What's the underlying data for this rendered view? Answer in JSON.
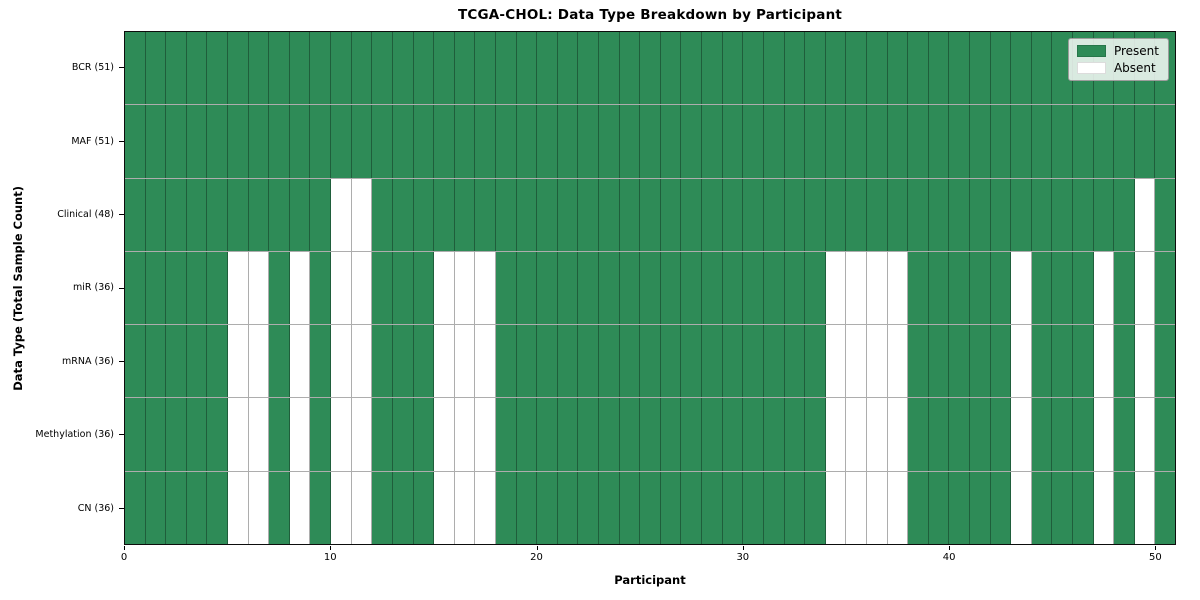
{
  "chart_data": {
    "type": "heatmap",
    "title": "TCGA-CHOL: Data Type Breakdown by Participant",
    "xlabel": "Participant",
    "ylabel": "Data Type (Total Sample Count)",
    "n_participants": 51,
    "xlim": [
      0,
      51
    ],
    "x_ticks": [
      0,
      10,
      20,
      30,
      40,
      50
    ],
    "grid": true,
    "legend_position": "upper right",
    "legend": [
      {
        "label": "Present",
        "color": "#2e8b57"
      },
      {
        "label": "Absent",
        "color": "#ffffff"
      }
    ],
    "colors": {
      "present": "#2e8b57",
      "absent": "#ffffff",
      "gridline": "rgba(0,0,0,0.32)",
      "absent_swatch_border": "#dcdcdc"
    },
    "rows": [
      {
        "label": "BCR (51)",
        "present_count": 51,
        "absent_participants": []
      },
      {
        "label": "MAF (51)",
        "present_count": 51,
        "absent_participants": []
      },
      {
        "label": "Clinical (48)",
        "present_count": 48,
        "absent_participants": [
          10,
          11,
          49
        ]
      },
      {
        "label": "miR (36)",
        "present_count": 36,
        "absent_participants": [
          5,
          6,
          8,
          10,
          11,
          15,
          16,
          17,
          34,
          35,
          36,
          37,
          43,
          47,
          49
        ]
      },
      {
        "label": "mRNA (36)",
        "present_count": 36,
        "absent_participants": [
          5,
          6,
          8,
          10,
          11,
          15,
          16,
          17,
          34,
          35,
          36,
          37,
          43,
          47,
          49
        ]
      },
      {
        "label": "Methylation (36)",
        "present_count": 36,
        "absent_participants": [
          5,
          6,
          8,
          10,
          11,
          15,
          16,
          17,
          34,
          35,
          36,
          37,
          43,
          47,
          49
        ]
      },
      {
        "label": "CN (36)",
        "present_count": 36,
        "absent_participants": [
          5,
          6,
          8,
          10,
          11,
          15,
          16,
          17,
          34,
          35,
          36,
          37,
          43,
          47,
          49
        ]
      }
    ]
  }
}
